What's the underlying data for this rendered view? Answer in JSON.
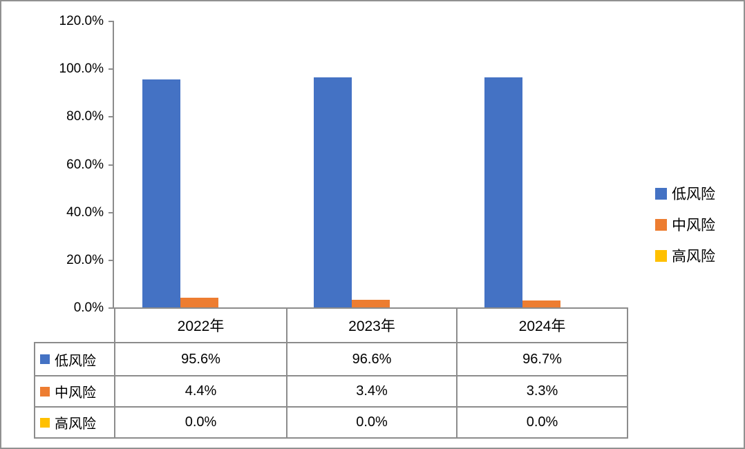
{
  "chart_data": {
    "type": "bar",
    "title": "",
    "categories": [
      "2022年",
      "2023年",
      "2024年"
    ],
    "series": [
      {
        "name": "低风险",
        "color": "#4472C4",
        "values": [
          95.6,
          96.6,
          96.7
        ],
        "labels": [
          "95.6%",
          "96.6%",
          "96.7%"
        ]
      },
      {
        "name": "中风险",
        "color": "#ED7D31",
        "values": [
          4.4,
          3.4,
          3.3
        ],
        "labels": [
          "4.4%",
          "3.4%",
          "3.3%"
        ]
      },
      {
        "name": "高风险",
        "color": "#FFC000",
        "values": [
          0.0,
          0.0,
          0.0
        ],
        "labels": [
          "0.0%",
          "0.0%",
          "0.0%"
        ]
      }
    ],
    "y_axis": {
      "min": 0,
      "max": 120,
      "step": 20,
      "ticks": [
        "120.0%",
        "100.0%",
        "80.0%",
        "60.0%",
        "40.0%",
        "20.0%",
        "0.0%"
      ],
      "tick_values": [
        120,
        100,
        80,
        60,
        40,
        20,
        0
      ]
    },
    "legend": {
      "position": "right",
      "entries": [
        "低风险",
        "中风险",
        "高风险"
      ]
    },
    "data_table_shown": true,
    "grid": "off",
    "colors": {
      "axis_line": "#8c8c8c",
      "table_border": "#8c8c8c",
      "frame": "#919191",
      "background": "#ffffff",
      "text": "#000000"
    }
  }
}
